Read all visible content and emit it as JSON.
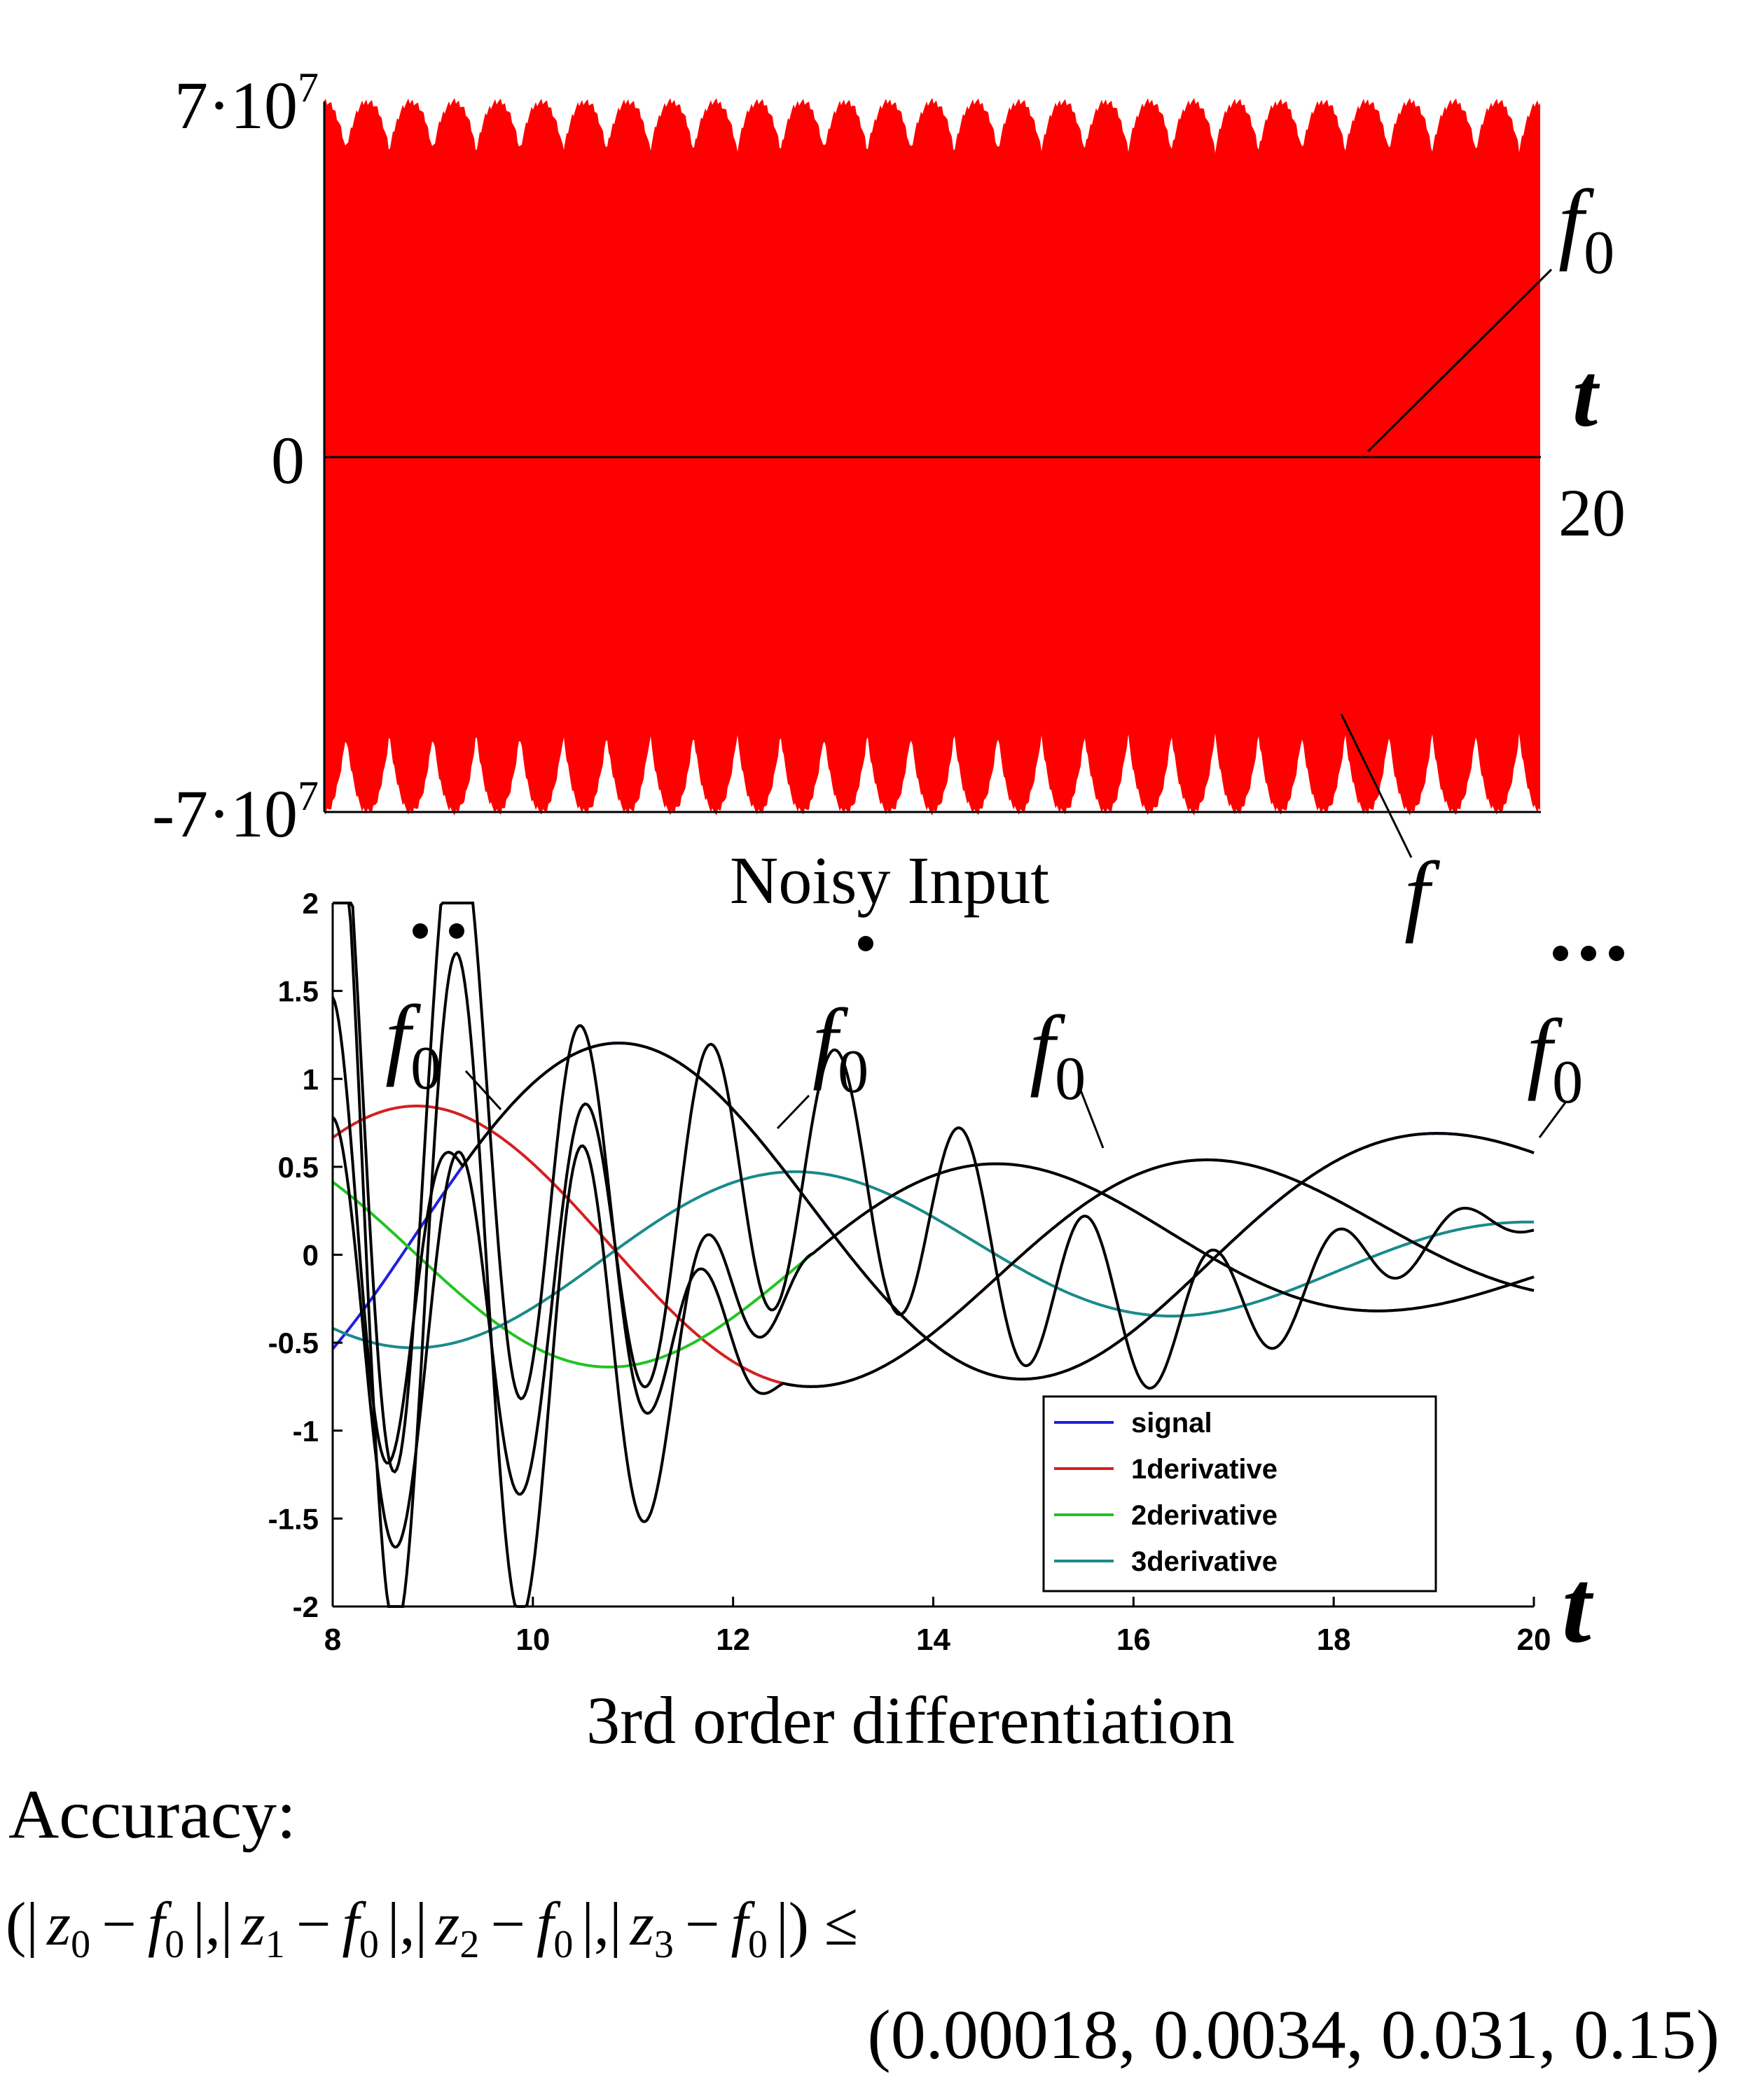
{
  "top_chart": {
    "title": "Noisy Input",
    "ytick_top": "7·10",
    "ytick_top_exp": "7",
    "ytick_zero": "0",
    "ytick_bottom": "-7·10",
    "ytick_bottom_exp": "7",
    "xtick_end": "20",
    "t_label": "t",
    "f0_label": "f",
    "f0_sub": "0",
    "f_label": "f",
    "fill_color": "#ff0000",
    "line_color": "#000000"
  },
  "chart_data": {
    "type": "line",
    "title": "3rd order differentiation",
    "xlabel": "t",
    "xlim": [
      8,
      20
    ],
    "ylim": [
      -2,
      2
    ],
    "xticks": [
      "8",
      "10",
      "12",
      "14",
      "16",
      "18",
      "20"
    ],
    "yticks": [
      "2",
      "1.5",
      "1",
      "0.5",
      "0",
      "-0.5",
      "-1",
      "-1.5",
      "-2"
    ],
    "legend_position": "bottom-right",
    "annotations": [
      {
        "text": "f",
        "sub": "0",
        "dots": 2,
        "t": 9.4,
        "y": 0.75
      },
      {
        "text": "f",
        "sub": "0",
        "dots": 1,
        "t": 12.4,
        "y": 0.72
      },
      {
        "text": "f",
        "sub": "0",
        "dots": 0,
        "t": 15.9,
        "y": 0.52
      },
      {
        "text": "f",
        "sub": "0",
        "dots": 3,
        "t": 20,
        "y": 0.58
      }
    ],
    "series": [
      {
        "name": "signal",
        "color": "#1f1fe0"
      },
      {
        "name": "1derivative",
        "color": "#d42020"
      },
      {
        "name": "2derivative",
        "color": "#22c422"
      },
      {
        "name": "3derivative",
        "color": "#1a8a8a"
      }
    ]
  },
  "accuracy": {
    "heading": "Accuracy:",
    "p_open": "(|",
    "z0": "z",
    "z0_sub": "0",
    "minus": "−",
    "f_letter": "f",
    "f_sub": "0",
    "sep": "|,|",
    "z1": "z",
    "z1_sub": "1",
    "z2": "z",
    "z2_sub": "2",
    "z3": "z",
    "z3_sub": "3",
    "close_leq": "|) ≤",
    "values": "(0.00018, 0.0034, 0.031, 0.15)"
  }
}
